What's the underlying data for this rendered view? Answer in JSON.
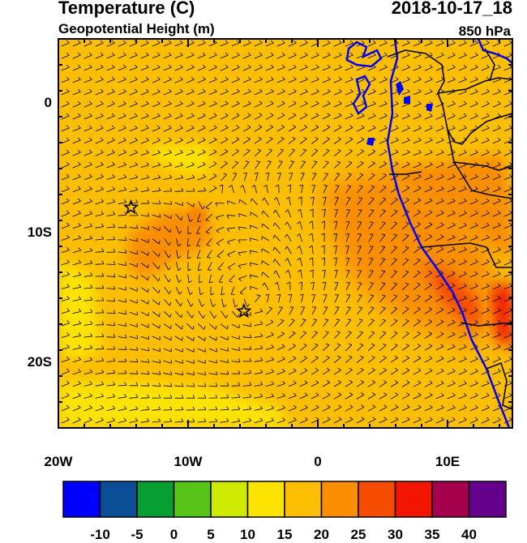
{
  "title": {
    "left_main": "Temperature (C)",
    "left_sub": "Geopotential Height (m)",
    "right_main": "2018-10-17_18",
    "right_sub": "850 hPa"
  },
  "map": {
    "lon_range": [
      -20,
      15
    ],
    "lat_range": [
      -25,
      5
    ],
    "x_ticks": [
      {
        "lon": -20,
        "label": "20W"
      },
      {
        "lon": -10,
        "label": "10W"
      },
      {
        "lon": 0,
        "label": "0"
      },
      {
        "lon": 10,
        "label": "10E"
      }
    ],
    "y_ticks": [
      {
        "lat": 0,
        "label": "0"
      },
      {
        "lat": -10,
        "label": "10S"
      },
      {
        "lat": -20,
        "label": "20S"
      }
    ],
    "markers": [
      {
        "name": "star-marker-1",
        "lon": -14.4,
        "lat": -8.0
      },
      {
        "name": "star-marker-2",
        "lon": -5.7,
        "lat": -16.0
      }
    ]
  },
  "colorbar": {
    "colors": [
      "#0000ff",
      "#0a4f96",
      "#079f34",
      "#55c416",
      "#cdea00",
      "#fde300",
      "#fbbe00",
      "#f98e00",
      "#f64c00",
      "#f21500",
      "#a5004e",
      "#64008c"
    ],
    "labels": [
      "-10",
      "-5",
      "0",
      "5",
      "10",
      "15",
      "20",
      "25",
      "30",
      "35",
      "40"
    ]
  }
}
